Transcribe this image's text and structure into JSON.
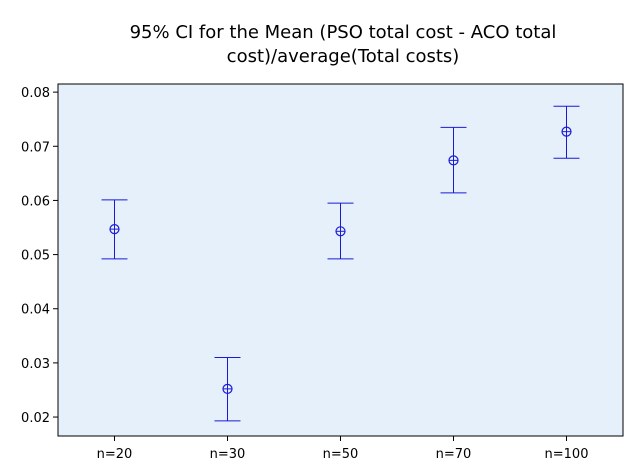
{
  "chart_data": {
    "type": "errorbar",
    "title_lines": [
      "95% CI for the Mean (PSO total cost - ACO total",
      "cost)/average(Total costs)"
    ],
    "xlabel": "",
    "ylabel": "",
    "categories": [
      "n=20",
      "n=30",
      "n=50",
      "n=70",
      "n=100"
    ],
    "series": [
      {
        "mean": [
          0.0547,
          0.0252,
          0.0543,
          0.0674,
          0.0727
        ],
        "lower": [
          0.0492,
          0.0193,
          0.0492,
          0.0614,
          0.0678
        ],
        "upper": [
          0.0601,
          0.031,
          0.0595,
          0.0735,
          0.0774
        ]
      }
    ],
    "yticks": [
      0.02,
      0.03,
      0.04,
      0.05,
      0.06,
      0.07,
      0.08
    ],
    "ytick_labels": [
      "0.02",
      "0.03",
      "0.04",
      "0.05",
      "0.06",
      "0.07",
      "0.08"
    ],
    "ylim": [
      0.0165,
      0.0815
    ],
    "grid": false,
    "colors": {
      "plot_bg": "#e6f0fb",
      "marks": "#1a1ad6",
      "axis": "#000000"
    }
  }
}
